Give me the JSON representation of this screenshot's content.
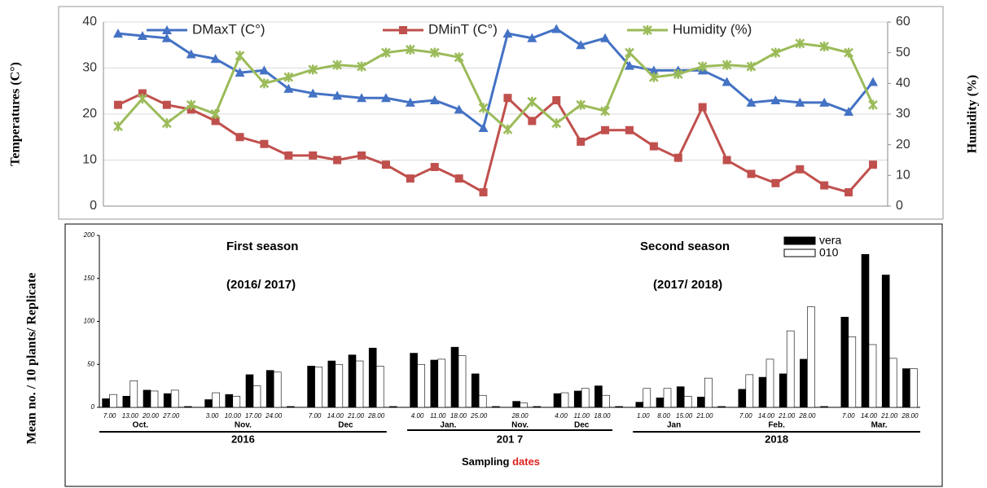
{
  "chart_data": [
    {
      "type": "line",
      "y_label": "Temperatures (C°)",
      "y2_label": "Humidity (%)",
      "categories": [
        null,
        null,
        null,
        null,
        null,
        null,
        null,
        null,
        null,
        null,
        null,
        null,
        null,
        null,
        null,
        null,
        null,
        null,
        null,
        null,
        null,
        null,
        null,
        null,
        null,
        null,
        null,
        null,
        null,
        null,
        null,
        null
      ],
      "series": [
        {
          "name": "DMaxT (C°)",
          "color": "#4472c4",
          "marker": "triangle",
          "values": [
            37.5,
            37,
            36.5,
            33,
            32,
            29,
            29.5,
            25.5,
            24.5,
            24,
            23.5,
            23.5,
            22.5,
            23,
            21,
            17,
            37.5,
            36.5,
            38.5,
            35,
            36.5,
            30.5,
            29.5,
            29.5,
            29.5,
            27,
            22.5,
            23,
            22.5,
            22.5,
            20.5,
            27
          ]
        },
        {
          "name": "DMinT (C°)",
          "color": "#c0504d",
          "marker": "square",
          "values": [
            22,
            24.5,
            22,
            21,
            18.5,
            15,
            13.5,
            11,
            11,
            10,
            11,
            9,
            6,
            8.5,
            6,
            3,
            23.5,
            18.5,
            23,
            14,
            16.5,
            16.5,
            13,
            10.5,
            21.5,
            10,
            7,
            5,
            8,
            4.5,
            3,
            9
          ]
        },
        {
          "name": "Humidity (%)",
          "color": "#9bbb59",
          "marker": "x",
          "axis": "y2",
          "values": [
            26,
            35,
            27,
            33,
            30,
            49,
            40,
            42,
            44.5,
            46,
            45.5,
            50,
            51,
            50,
            48.5,
            32,
            25,
            34,
            27,
            33,
            31,
            50,
            42,
            43,
            45.5,
            46,
            45.5,
            50,
            53,
            52,
            50,
            33
          ]
        }
      ],
      "ylim": [
        0,
        40
      ],
      "yticks": [
        0,
        10,
        20,
        30,
        40
      ],
      "y2lim": [
        0,
        60
      ],
      "y2ticks": [
        0,
        10,
        20,
        30,
        40,
        50,
        60
      ],
      "grid": true
    },
    {
      "type": "bar",
      "y_label": "Mean no. / 10 plants/ Replicate",
      "x_label": "Sampling",
      "x_label_highlight": "dates",
      "annotations": [
        "First season",
        "(2016/ 2017)",
        "Second season",
        "(2017/ 2018)"
      ],
      "categories": [
        "7.00",
        "13.00",
        "20.00",
        "27.00",
        null,
        "3.00",
        "10.00",
        "17.00",
        "24.00",
        null,
        "7.00",
        "14.00",
        "21.00",
        "28.00",
        null,
        "4.00",
        "11.00",
        "18.00",
        "25.00",
        null,
        "28.00",
        null,
        "4.00",
        "11.00",
        "18.00",
        null,
        "1.00",
        "8.00",
        "15.00",
        "21.00",
        null,
        "7.00",
        "14.00",
        "21.00",
        "28.00",
        null,
        "7.00",
        "14.00",
        "21.00",
        "28.00"
      ],
      "month_labels": [
        "Oct.",
        "Nov.",
        "Dec",
        "Jan.",
        "Nov.",
        "Dec",
        "Jan",
        "Feb.",
        "Mar."
      ],
      "year_labels": [
        "2016",
        "201 7",
        "2018"
      ],
      "series": [
        {
          "name": "vera",
          "color": "#000000",
          "values": [
            10,
            13,
            20,
            16,
            1,
            9,
            15,
            38,
            43,
            1,
            48,
            54,
            61,
            69,
            1,
            63,
            55,
            70,
            39,
            1,
            7,
            1,
            16,
            19,
            25,
            1,
            6,
            11,
            24,
            12,
            1,
            21,
            35,
            39,
            56,
            1,
            105,
            178,
            154,
            45
          ]
        },
        {
          "name": "010",
          "color": "#ffffff",
          "values": [
            15,
            31,
            19,
            20,
            0,
            17,
            13,
            25,
            41,
            0,
            47,
            50,
            54,
            48,
            0,
            50,
            56,
            60,
            14,
            0,
            5,
            0,
            17,
            22,
            14,
            0,
            22,
            22,
            13,
            34,
            0,
            38,
            56,
            89,
            117,
            0,
            82,
            73,
            57,
            45
          ]
        }
      ],
      "ylim": [
        0,
        200
      ],
      "yticks": [
        0,
        50,
        100,
        150,
        200
      ]
    }
  ]
}
